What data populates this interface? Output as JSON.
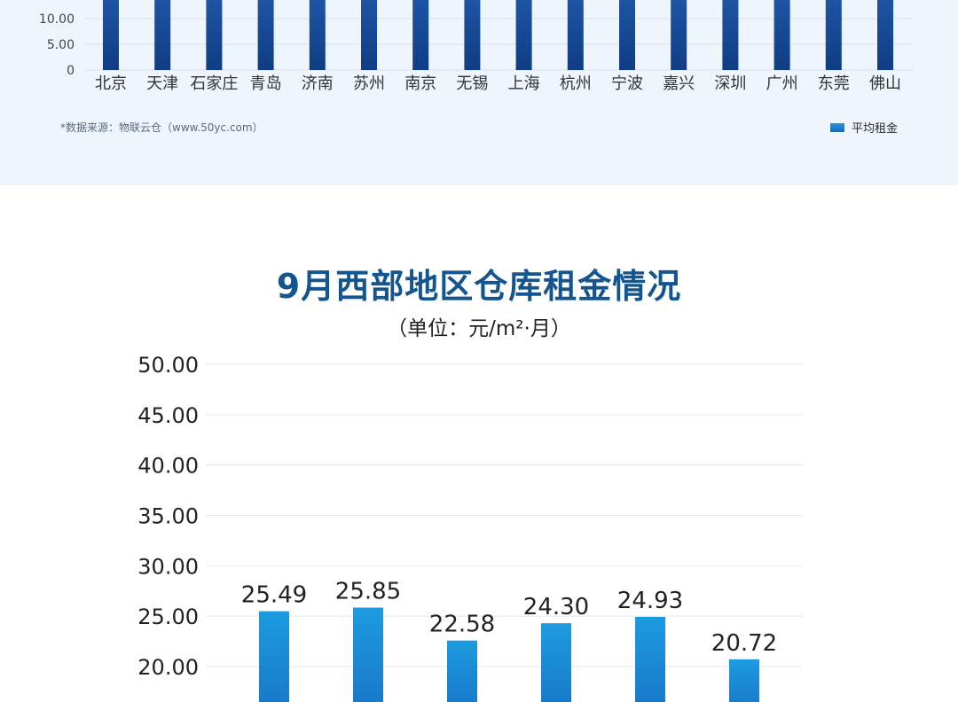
{
  "chart_data": [
    {
      "type": "bar",
      "categories": [
        "北京",
        "天津",
        "石家庄",
        "青岛",
        "济南",
        "苏州",
        "南京",
        "无锡",
        "上海",
        "杭州",
        "宁波",
        "嘉兴",
        "深圳",
        "广州",
        "东莞",
        "佛山"
      ],
      "series": [
        {
          "name": "平均租金",
          "values": [
            null,
            null,
            null,
            null,
            null,
            null,
            null,
            null,
            null,
            null,
            null,
            null,
            null,
            null,
            null,
            null
          ]
        }
      ],
      "y_ticks": [
        "10.00",
        "5.00",
        "0"
      ],
      "ylim": [
        0,
        10.0
      ],
      "source_note": "*数据来源：物联云仓（www.50yc.com）",
      "legend": "平均租金",
      "legend_position": "bottom-right",
      "grid": true,
      "colors": {
        "bar_top": "#1f57a8",
        "bar_bottom": "#0f3d84"
      }
    },
    {
      "type": "bar",
      "title": "9月西部地区仓库租金情况",
      "unit": "（单位：元/m²·月）",
      "y_ticks": [
        "50.00",
        "45.00",
        "40.00",
        "35.00",
        "30.00",
        "25.00",
        "20.00"
      ],
      "ylim": [
        20.0,
        50.0
      ],
      "values": [
        25.49,
        25.85,
        22.58,
        24.3,
        24.93,
        20.72
      ],
      "data_labels": [
        "25.49",
        "25.85",
        "22.58",
        "24.30",
        "24.93",
        "20.72"
      ],
      "grid": true,
      "colors": {
        "bar_top": "#1d9be0",
        "bar_bottom": "#1878c9",
        "title": "#15558f"
      }
    }
  ]
}
